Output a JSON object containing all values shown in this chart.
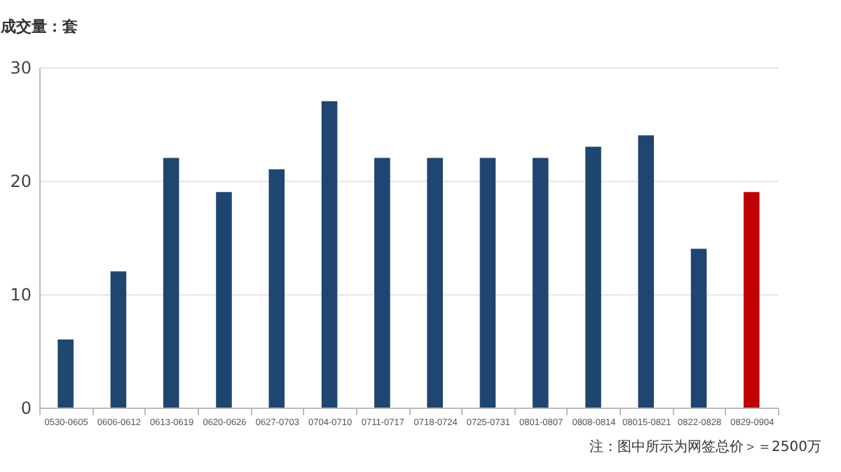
{
  "chart_data": {
    "type": "bar",
    "ylabel": "成交量：套",
    "categories": [
      "0530-0605",
      "0606-0612",
      "0613-0619",
      "0620-0626",
      "0627-0703",
      "0704-0710",
      "0711-0717",
      "0718-0724",
      "0725-0731",
      "0801-0807",
      "0808-0814",
      "08015-0821",
      "0822-0828",
      "0829-0904"
    ],
    "values": [
      6,
      12,
      22,
      19,
      21,
      27,
      22,
      22,
      22,
      22,
      23,
      24,
      14,
      19
    ],
    "colors": [
      "#1f4670",
      "#1f4670",
      "#1f4670",
      "#1f4670",
      "#1f4670",
      "#1f4670",
      "#1f4670",
      "#1f4670",
      "#1f4670",
      "#1f4670",
      "#1f4670",
      "#1f4670",
      "#1f4670",
      "#c00000"
    ],
    "ylim": [
      0,
      30
    ],
    "yticks": [
      0,
      10,
      20,
      30
    ],
    "grid": "y",
    "annotations": [
      "注：图中所示为网签总价＞＝2500万"
    ]
  }
}
